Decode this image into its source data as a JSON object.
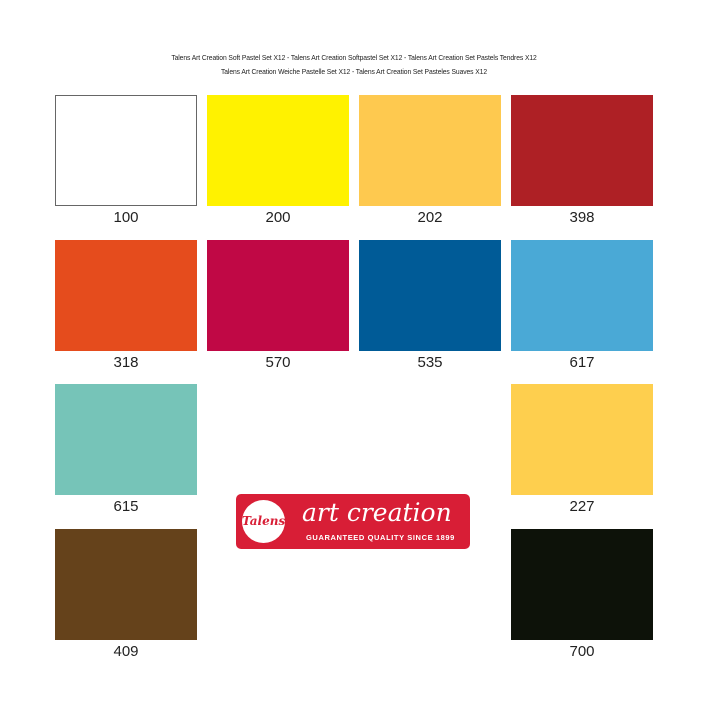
{
  "header": {
    "line1": "Talens Art Creation Soft Pastel Set X12 - Talens Art Creation Softpastel Set X12 - Talens Art Creation Set Pastels Tendres X12",
    "line2": "Talens Art Creation Weiche Pastelle Set X12 - Talens Art Creation Set Pasteles Suaves X12"
  },
  "swatches": [
    {
      "code": "100",
      "color": "#ffffff"
    },
    {
      "code": "200",
      "color": "#fff200"
    },
    {
      "code": "202",
      "color": "#fec94f"
    },
    {
      "code": "398",
      "color": "#ae2025"
    },
    {
      "code": "318",
      "color": "#e54c1d"
    },
    {
      "code": "570",
      "color": "#c00845"
    },
    {
      "code": "535",
      "color": "#005b97"
    },
    {
      "code": "617",
      "color": "#4aa9d6"
    },
    {
      "code": "615",
      "color": "#76c4b8"
    },
    {
      "code": "227",
      "color": "#fecf4e"
    },
    {
      "code": "409",
      "color": "#65421b"
    },
    {
      "code": "700",
      "color": "#0d1209"
    }
  ],
  "logo": {
    "seal": "Talens",
    "brand": "art creation",
    "tagline": "GUARANTEED QUALITY SINCE 1899",
    "color": "#d81e36"
  }
}
